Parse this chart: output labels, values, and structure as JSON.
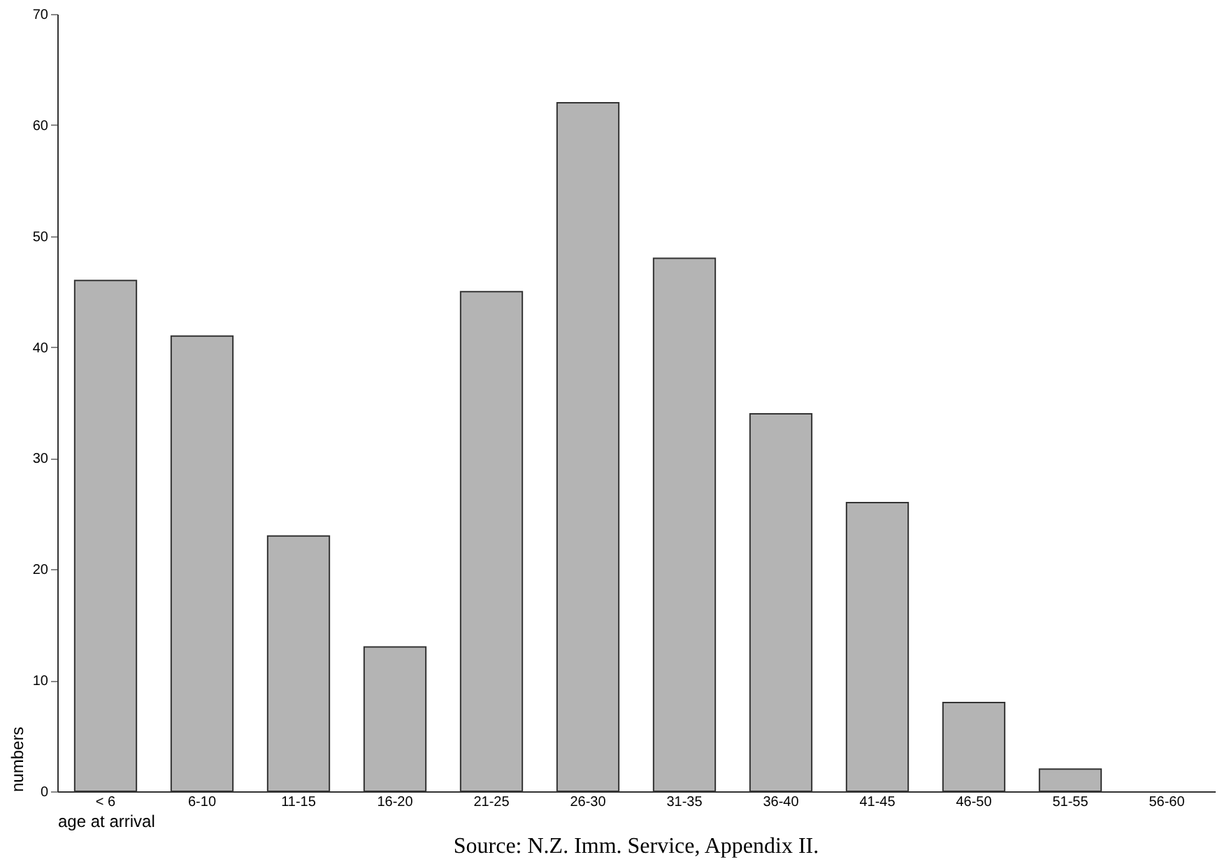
{
  "chart_data": {
    "type": "bar",
    "xlabel": "age at arrival",
    "ylabel": "numbers",
    "annotations": [
      "Source: N.Z. Imm. Service, Appendix II."
    ],
    "categories": [
      "< 6",
      "6-10",
      "11-15",
      "16-20",
      "21-25",
      "26-30",
      "31-35",
      "36-40",
      "41-45",
      "46-50",
      "51-55",
      "56-60"
    ],
    "values": [
      46,
      41,
      23,
      13,
      45,
      62,
      48,
      34,
      26,
      8,
      2,
      0
    ],
    "color": "#b4b4b4",
    "ylim": [
      0,
      70
    ],
    "yticks": [
      0,
      10,
      20,
      30,
      40,
      50,
      60,
      70
    ],
    "grid": false
  }
}
